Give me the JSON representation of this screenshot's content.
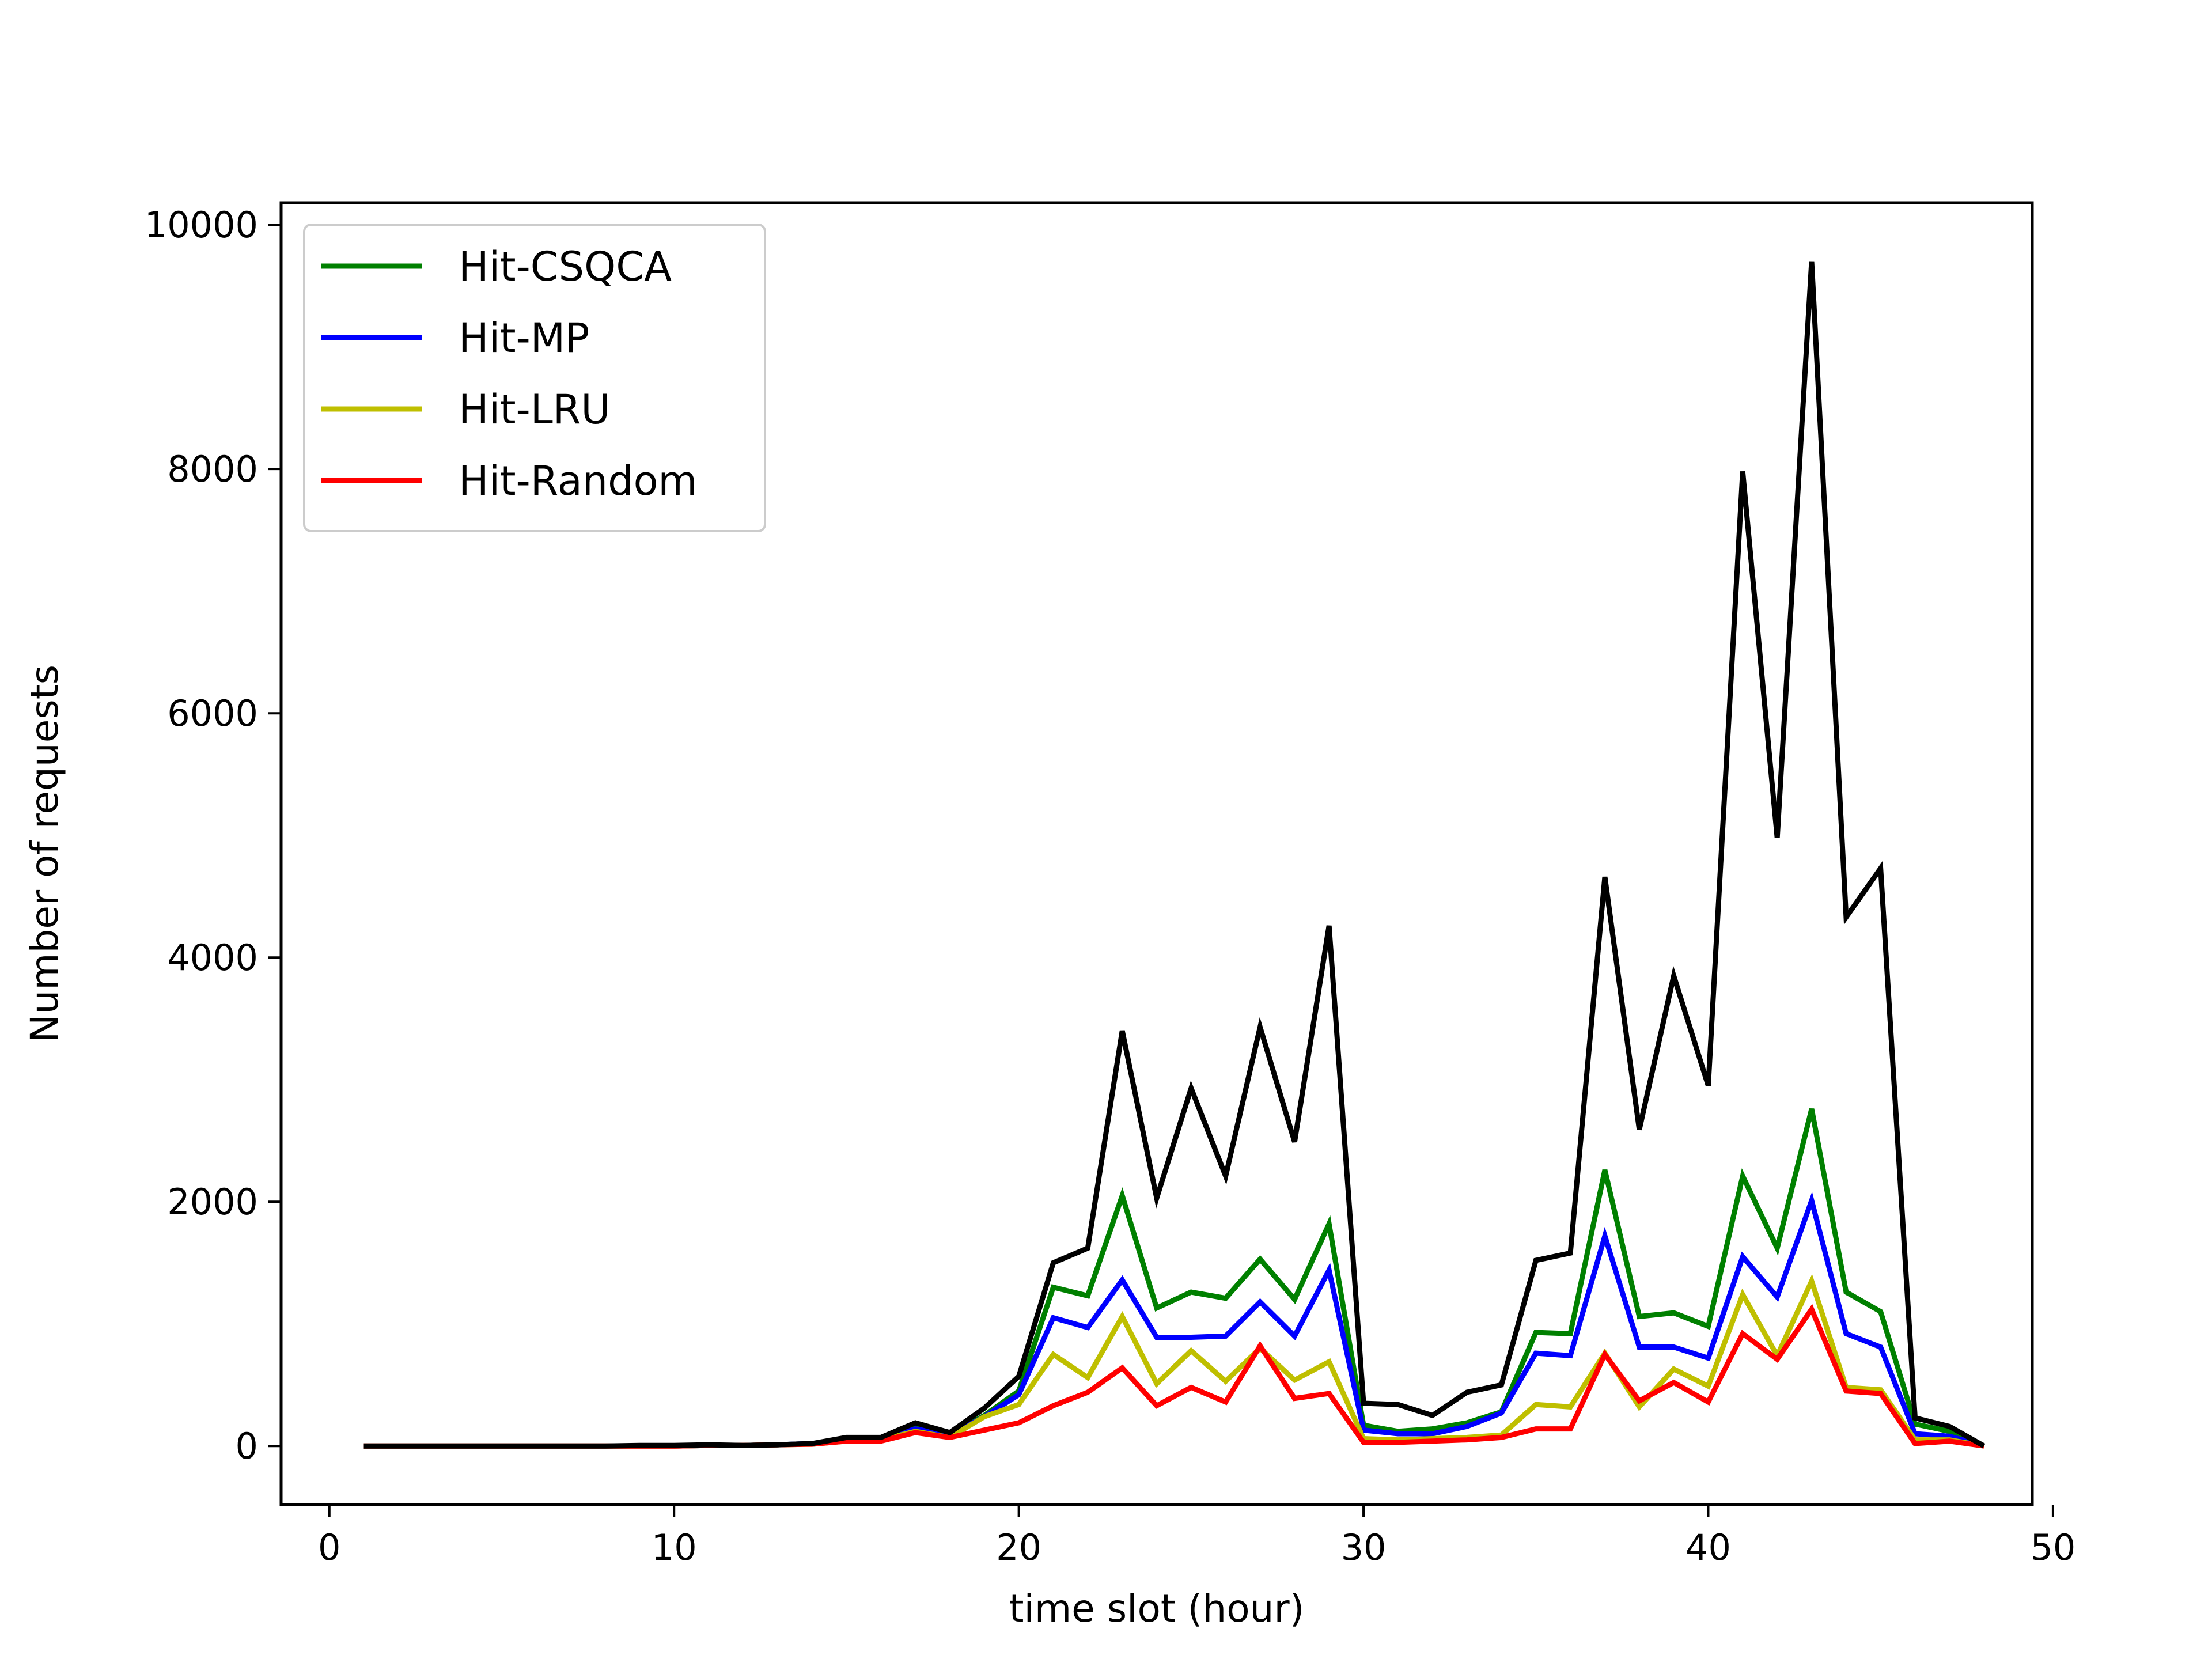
{
  "chart_data": {
    "type": "line",
    "title": "",
    "xlabel": "time slot (hour)",
    "ylabel": "Number of requests",
    "xlim": [
      -1.4,
      49.4
    ],
    "ylim": [
      -480,
      10180
    ],
    "xticks": [
      0,
      10,
      20,
      30,
      40,
      50
    ],
    "yticks": [
      0,
      2000,
      4000,
      6000,
      8000,
      10000
    ],
    "grid": false,
    "legend_position": "top-left",
    "x": [
      1,
      2,
      3,
      4,
      5,
      6,
      7,
      8,
      9,
      10,
      11,
      12,
      13,
      14,
      15,
      16,
      17,
      18,
      19,
      20,
      21,
      22,
      23,
      24,
      25,
      26,
      27,
      28,
      29,
      30,
      31,
      32,
      33,
      34,
      35,
      36,
      37,
      38,
      39,
      40,
      41,
      42,
      43,
      44,
      45,
      46,
      47,
      48
    ],
    "series": [
      {
        "name": "Hit-CSQCA",
        "color": "#008000",
        "in_legend": true,
        "values": [
          0,
          0,
          0,
          0,
          0,
          0,
          0,
          0,
          0,
          0,
          5,
          5,
          10,
          20,
          50,
          60,
          150,
          90,
          250,
          450,
          1300,
          1230,
          2050,
          1130,
          1260,
          1210,
          1530,
          1200,
          1820,
          170,
          120,
          140,
          190,
          280,
          930,
          920,
          2260,
          1060,
          1090,
          980,
          2210,
          1620,
          2760,
          1260,
          1100,
          180,
          120,
          0
        ]
      },
      {
        "name": "Hit-MP",
        "color": "#0000ff",
        "in_legend": true,
        "values": [
          0,
          0,
          0,
          0,
          0,
          0,
          0,
          0,
          0,
          0,
          5,
          5,
          10,
          20,
          50,
          60,
          140,
          90,
          240,
          420,
          1050,
          970,
          1360,
          890,
          890,
          900,
          1180,
          900,
          1440,
          130,
          100,
          100,
          160,
          270,
          760,
          740,
          1720,
          810,
          810,
          720,
          1550,
          1220,
          2010,
          920,
          810,
          100,
          80,
          0
        ]
      },
      {
        "name": "Hit-LRU",
        "color": "#bfbf00",
        "in_legend": true,
        "values": [
          0,
          0,
          0,
          0,
          0,
          0,
          0,
          0,
          0,
          0,
          5,
          5,
          10,
          15,
          40,
          50,
          120,
          70,
          240,
          340,
          750,
          560,
          1060,
          510,
          780,
          530,
          800,
          540,
          690,
          60,
          50,
          60,
          70,
          90,
          340,
          320,
          760,
          320,
          630,
          490,
          1240,
          740,
          1350,
          480,
          460,
          50,
          50,
          0
        ]
      },
      {
        "name": "Hit-Random",
        "color": "#ff0000",
        "in_legend": true,
        "values": [
          0,
          0,
          0,
          0,
          0,
          0,
          0,
          0,
          0,
          0,
          5,
          5,
          10,
          15,
          40,
          40,
          110,
          70,
          130,
          190,
          330,
          440,
          640,
          330,
          480,
          360,
          820,
          390,
          430,
          30,
          30,
          40,
          50,
          70,
          140,
          140,
          750,
          370,
          520,
          360,
          920,
          710,
          1120,
          450,
          430,
          20,
          40,
          0
        ]
      },
      {
        "name": "",
        "color": "#000000",
        "in_legend": false,
        "values": [
          0,
          0,
          0,
          0,
          0,
          0,
          0,
          0,
          5,
          5,
          10,
          5,
          10,
          20,
          70,
          70,
          190,
          110,
          310,
          570,
          1500,
          1620,
          3400,
          2030,
          2930,
          2210,
          3430,
          2490,
          4260,
          350,
          340,
          250,
          440,
          500,
          1520,
          1580,
          4660,
          2590,
          3850,
          2950,
          7980,
          4980,
          9700,
          4330,
          4730,
          230,
          160,
          0
        ]
      }
    ]
  }
}
